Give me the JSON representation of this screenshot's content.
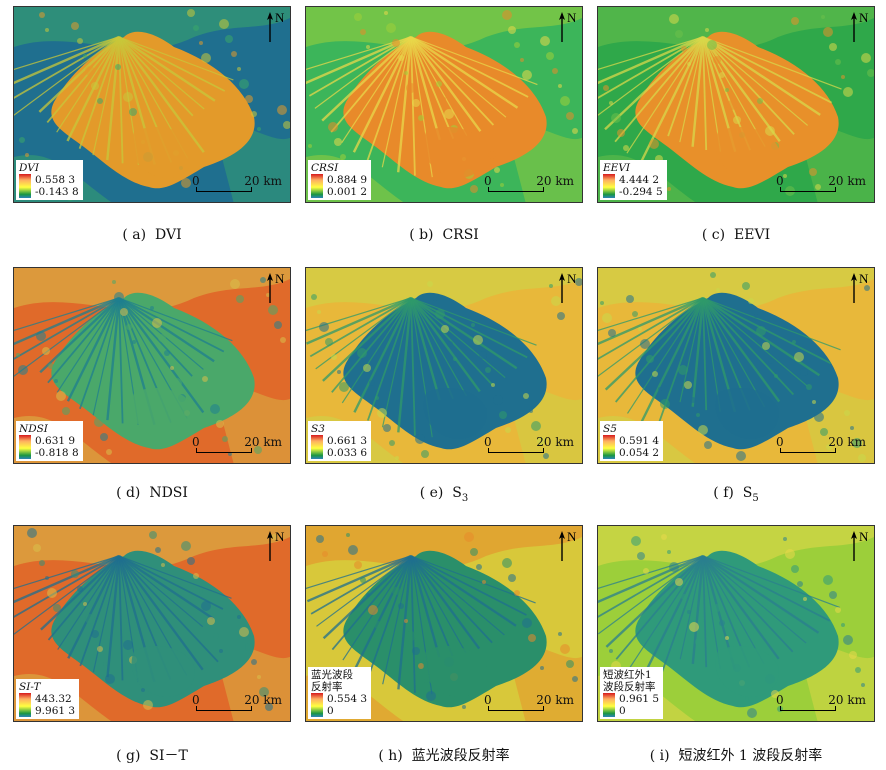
{
  "panels": [
    {
      "id": "a",
      "legend_title": "DVI",
      "max": "0.558 3",
      "min": "-0.143 8",
      "caption_prefix": "( a)  ",
      "caption": "DVI",
      "caption_sub": "",
      "scheme": "dvi"
    },
    {
      "id": "b",
      "legend_title": "CRSI",
      "max": "0.884 9",
      "min": "0.001 2",
      "caption_prefix": "( b)  ",
      "caption": "CRSI",
      "caption_sub": "",
      "scheme": "crsi"
    },
    {
      "id": "c",
      "legend_title": "EEVI",
      "max": "4.444 2",
      "min": "-0.294 5",
      "caption_prefix": "( c)  ",
      "caption": "EEVI",
      "caption_sub": "",
      "scheme": "eevi"
    },
    {
      "id": "d",
      "legend_title": "NDSI",
      "max": "0.631 9",
      "min": "-0.818 8",
      "caption_prefix": "( d)  ",
      "caption": "NDSI",
      "caption_sub": "",
      "scheme": "ndsi"
    },
    {
      "id": "e",
      "legend_title": "S3",
      "max": "0.661 3",
      "min": "0.033 6",
      "caption_prefix": "( e)  ",
      "caption": "S",
      "caption_sub": "3",
      "scheme": "s"
    },
    {
      "id": "f",
      "legend_title": "S5",
      "max": "0.591 4",
      "min": "0.054 2",
      "caption_prefix": "( f)  ",
      "caption": "S",
      "caption_sub": "5",
      "scheme": "s"
    },
    {
      "id": "g",
      "legend_title": "SI-T",
      "max": "443.32",
      "min": "9.961 3",
      "caption_prefix": "( g)  ",
      "caption": "SI－T",
      "caption_sub": "",
      "scheme": "sit"
    },
    {
      "id": "h",
      "legend_title": "蓝光波段\n反射率",
      "max": "0.554 3",
      "min": "0",
      "caption_prefix": "( h)  ",
      "caption": "蓝光波段反射率",
      "caption_sub": "",
      "scheme": "blue"
    },
    {
      "id": "i",
      "legend_title": "短波红外1\n波段反射率",
      "max": "0.961 5",
      "min": "0",
      "caption_prefix": "( i)  ",
      "caption": "短波红外 1 波段反射率",
      "caption_sub": "",
      "scheme": "swir"
    }
  ],
  "north_label": "N",
  "scale": {
    "zero": "0",
    "distance": "20 km"
  },
  "palettes": {
    "dvi": {
      "bg": "#1f6f8f",
      "fan": "#e39a2a",
      "fan2": "#c8c83a",
      "edge": "#3aa86a"
    },
    "crsi": {
      "bg": "#3cb55a",
      "fan": "#e88a2a",
      "fan2": "#e8d84a",
      "edge": "#9fcf3a"
    },
    "eevi": {
      "bg": "#2fa84a",
      "fan": "#e8902a",
      "fan2": "#d8d84a",
      "edge": "#6cc04a"
    },
    "ndsi": {
      "bg": "#e06a2a",
      "fan": "#4aa86a",
      "fan2": "#1f7f8f",
      "edge": "#d8c04a"
    },
    "s": {
      "bg": "#e8b83a",
      "fan": "#1f6f8f",
      "fan2": "#2f9a6a",
      "edge": "#c8d84a"
    },
    "sit": {
      "bg": "#e06a2a",
      "fan": "#2f8f7a",
      "fan2": "#1f6f8f",
      "edge": "#d8c04a"
    },
    "blue": {
      "bg": "#d8c83a",
      "fan": "#2a8f6a",
      "fan2": "#1f6f8f",
      "edge": "#e88a2a"
    },
    "swir": {
      "bg": "#9ccf3a",
      "fan": "#2f9a7a",
      "fan2": "#2a7f8f",
      "edge": "#e8d84a"
    }
  }
}
